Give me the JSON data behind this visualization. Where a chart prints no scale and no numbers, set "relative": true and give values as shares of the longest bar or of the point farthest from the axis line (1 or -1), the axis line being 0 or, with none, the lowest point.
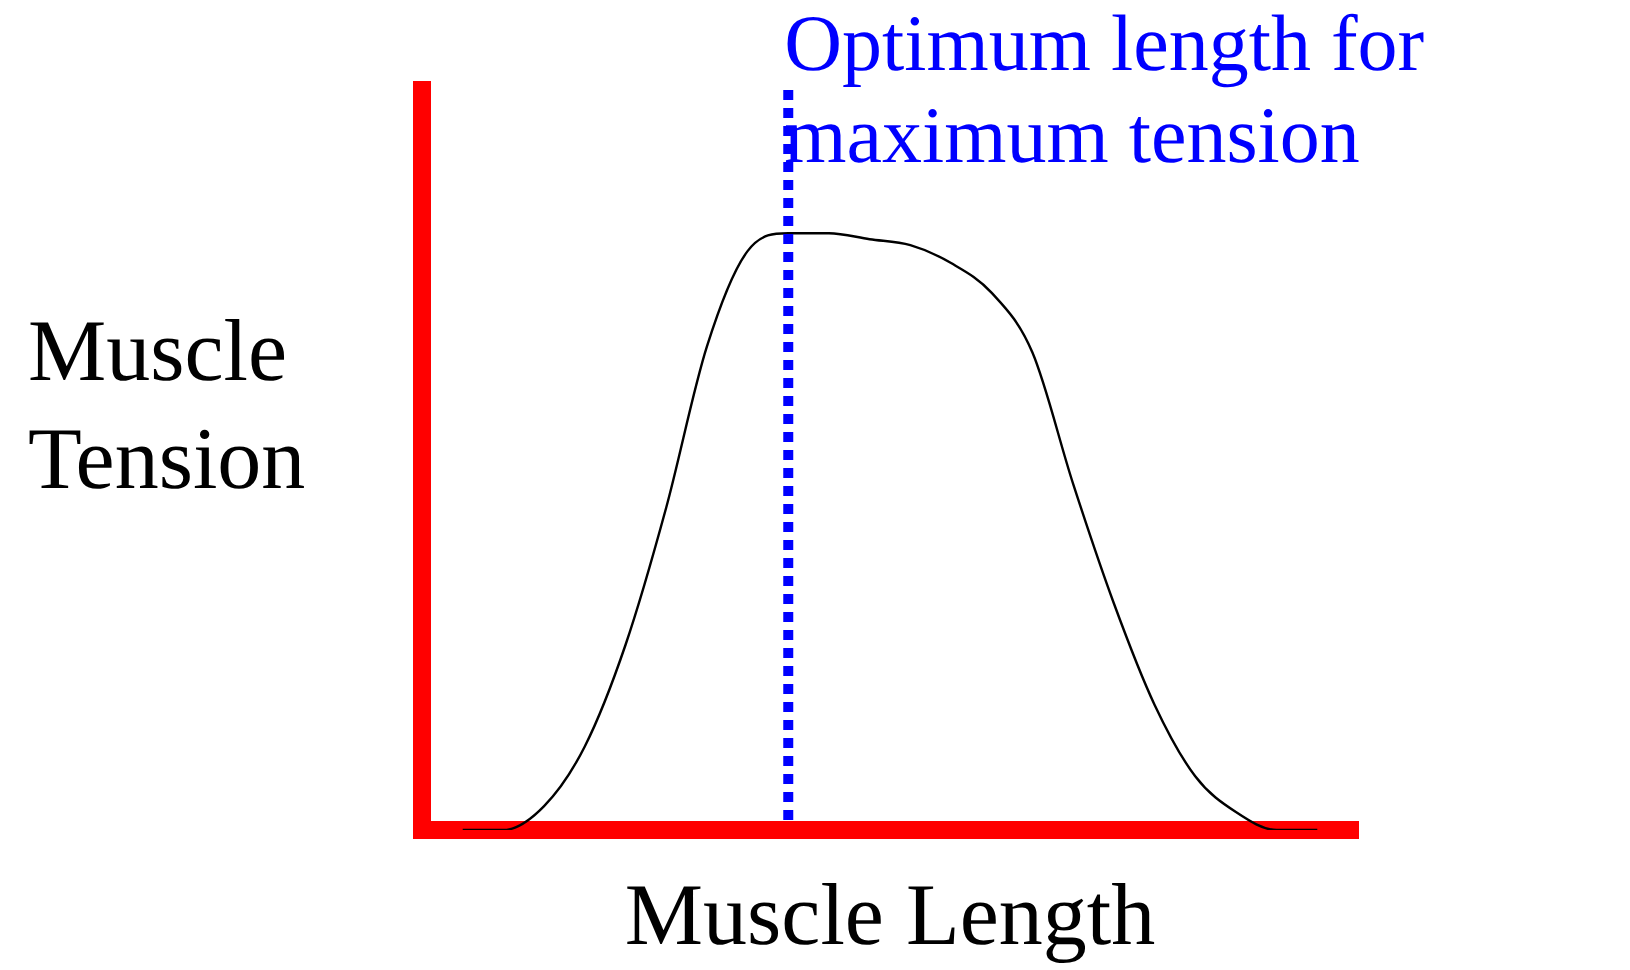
{
  "chart_data": {
    "type": "line",
    "relative": true,
    "xlabel": "Muscle Length",
    "ylabel": "Muscle Tension",
    "categories": [
      null,
      null,
      null,
      null,
      null,
      null,
      null,
      null,
      null,
      null,
      null,
      null,
      null,
      null,
      null,
      null,
      null,
      null,
      null,
      null,
      null,
      null
    ],
    "series": [
      {
        "color": "#000000",
        "values": [
          0.0,
          0.0,
          0.04,
          0.14,
          0.31,
          0.54,
          0.81,
          0.97,
          1.0,
          1.0,
          0.99,
          0.98,
          0.95,
          0.9,
          0.8,
          0.58,
          0.38,
          0.21,
          0.09,
          0.03,
          0.0,
          0.0
        ]
      }
    ],
    "annotations": [
      "Optimum length for maximum tension"
    ],
    "marker": "none",
    "grid": false,
    "legend": false,
    "tick_labels": false
  }
}
